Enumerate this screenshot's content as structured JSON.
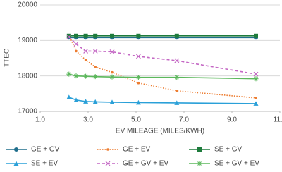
{
  "chart_data": {
    "type": "line",
    "x": [
      2.2,
      2.5,
      2.9,
      3.3,
      4.0,
      5.1,
      6.7,
      10.0
    ],
    "xlabel": "EV MILEAGE (MILES/KWH)",
    "ylabel": "TTEC",
    "xlim": [
      1,
      11
    ],
    "xticks": [
      {
        "value": 1,
        "label": "1.0"
      },
      {
        "value": 3,
        "label": "3.0"
      },
      {
        "value": 5,
        "label": "5.0"
      },
      {
        "value": 7,
        "label": "7.0"
      },
      {
        "value": 9,
        "label": "9.0"
      },
      {
        "value": 11,
        "label": "11.0"
      }
    ],
    "ylim": [
      17000,
      20000
    ],
    "yticks": [
      17000,
      18000,
      19000,
      20000
    ],
    "grid": true,
    "legend": "bottom",
    "series": [
      {
        "name": "GE + GV",
        "color": "#1f6e8c",
        "marker": "circle",
        "line_style": "solid",
        "values": [
          19080,
          19080,
          19080,
          19080,
          19080,
          19080,
          19080,
          19080
        ]
      },
      {
        "name": "GE + EV",
        "color": "#ed7d31",
        "marker": "dot",
        "line_style": "dotted",
        "values": [
          19150,
          18700,
          18450,
          18250,
          18100,
          17800,
          17580,
          17380
        ]
      },
      {
        "name": "SE + GV",
        "color": "#1e7b3c",
        "marker": "square",
        "line_style": "solid",
        "values": [
          19130,
          19130,
          19130,
          19130,
          19130,
          19130,
          19130,
          19130
        ]
      },
      {
        "name": "SE + EV",
        "color": "#2aa0d8",
        "marker": "triangle",
        "line_style": "solid",
        "values": [
          17400,
          17320,
          17280,
          17270,
          17260,
          17250,
          17240,
          17220
        ]
      },
      {
        "name": "GE + GV + EV",
        "color": "#c467c4",
        "marker": "x",
        "line_style": "dashed",
        "values": [
          19100,
          18900,
          18700,
          18700,
          18680,
          18550,
          18430,
          18050
        ]
      },
      {
        "name": "SE + GV + EV",
        "color": "#5cb85c",
        "marker": "star",
        "line_style": "solid",
        "values": [
          18050,
          18000,
          17990,
          17980,
          17970,
          17960,
          17960,
          17920
        ]
      }
    ]
  }
}
